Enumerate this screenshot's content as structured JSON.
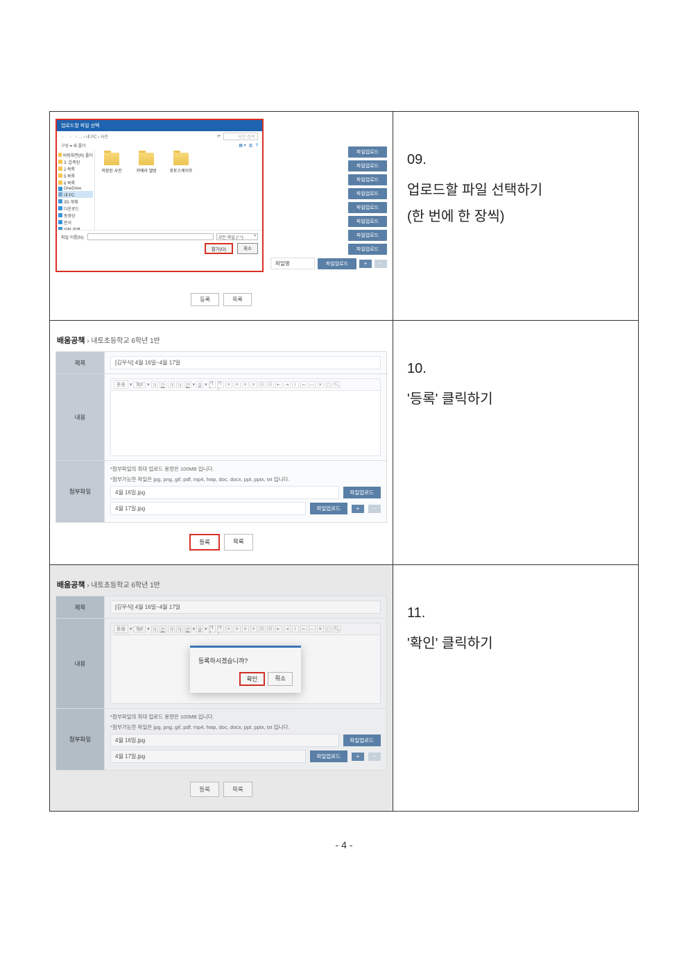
{
  "pageNumber": "- 4 -",
  "steps": {
    "s09": {
      "num": "09.",
      "text1": "업로드할  파일  선택하기",
      "text2": "(한 번에 한 장씩)"
    },
    "s10": {
      "num": "10.",
      "text1": "'등록' 클릭하기"
    },
    "s11": {
      "num": "11.",
      "text1": "'확인' 클릭하기"
    }
  },
  "fileDialog": {
    "title": "업로드할 파일 선택",
    "navPath": "↑ … › 내 PC › 사진",
    "searchPlaceholder": "사진 검색",
    "organize": "구성 ▾    새 폴더",
    "sidebar": [
      {
        "label": "바탕화면(R) 폴더",
        "cls": "ico-folder"
      },
      {
        "label": "3. 압축된",
        "cls": "ico-folder"
      },
      {
        "label": "2 목록",
        "cls": "ico-folder"
      },
      {
        "label": "5 목록",
        "cls": "ico-folder"
      },
      {
        "label": "6 목록",
        "cls": "ico-folder"
      },
      {
        "label": "OneDrive",
        "cls": "ico-blue"
      },
      {
        "label": "내 PC",
        "cls": "ico-drive",
        "sel": true
      },
      {
        "label": "3D 개체",
        "cls": "ico-blue"
      },
      {
        "label": "다운로드",
        "cls": "ico-blue"
      },
      {
        "label": "동영상",
        "cls": "ico-blue"
      },
      {
        "label": "문서",
        "cls": "ico-blue"
      },
      {
        "label": "바탕 화면",
        "cls": "ico-blue"
      },
      {
        "label": "사진",
        "cls": "ico-green",
        "sel": true
      },
      {
        "label": "음악",
        "cls": "ico-music"
      }
    ],
    "folders": [
      {
        "label": "저장된 사진"
      },
      {
        "label": "카메라 앨범"
      },
      {
        "label": "포토스케이프"
      }
    ],
    "fileNameLabel": "파일 이름(N):",
    "fileType": "모든 파일 (*.*)",
    "openLabel": "열기(O)",
    "cancelLabel": "취소"
  },
  "uploads": {
    "btn": "파일업로드",
    "fileNameLabel": "파일명",
    "count": 9
  },
  "bottomBtns": {
    "register": "등록",
    "list": "목록"
  },
  "form": {
    "breadcrumbBold": "배움공책",
    "breadcrumbRest": " › 내토초등학교 6학년 1반",
    "labels": {
      "title": "제목",
      "content": "내용",
      "attach": "첨부파일"
    },
    "titleValue": "[김우식] 4월 16일~4월 17일",
    "note1": "*첨부파일의 최대 업로드 용량은 100MB 입니다.",
    "note2": "*첨부가능한 파일은 jpg, png, gif, pdf, mp4, hwp, doc, docx, ppt, pptx, txt 입니다.",
    "files": [
      "4월 16일.jpg",
      "4월 17일.jpg"
    ],
    "uploadBtn": "파일업로드",
    "registerBtn": "등록",
    "listBtn": "목록",
    "editorFont": "돋움",
    "editorSize": "9pt"
  },
  "confirm": {
    "text": "등록하시겠습니까?",
    "ok": "확인",
    "cancel": "취소"
  }
}
